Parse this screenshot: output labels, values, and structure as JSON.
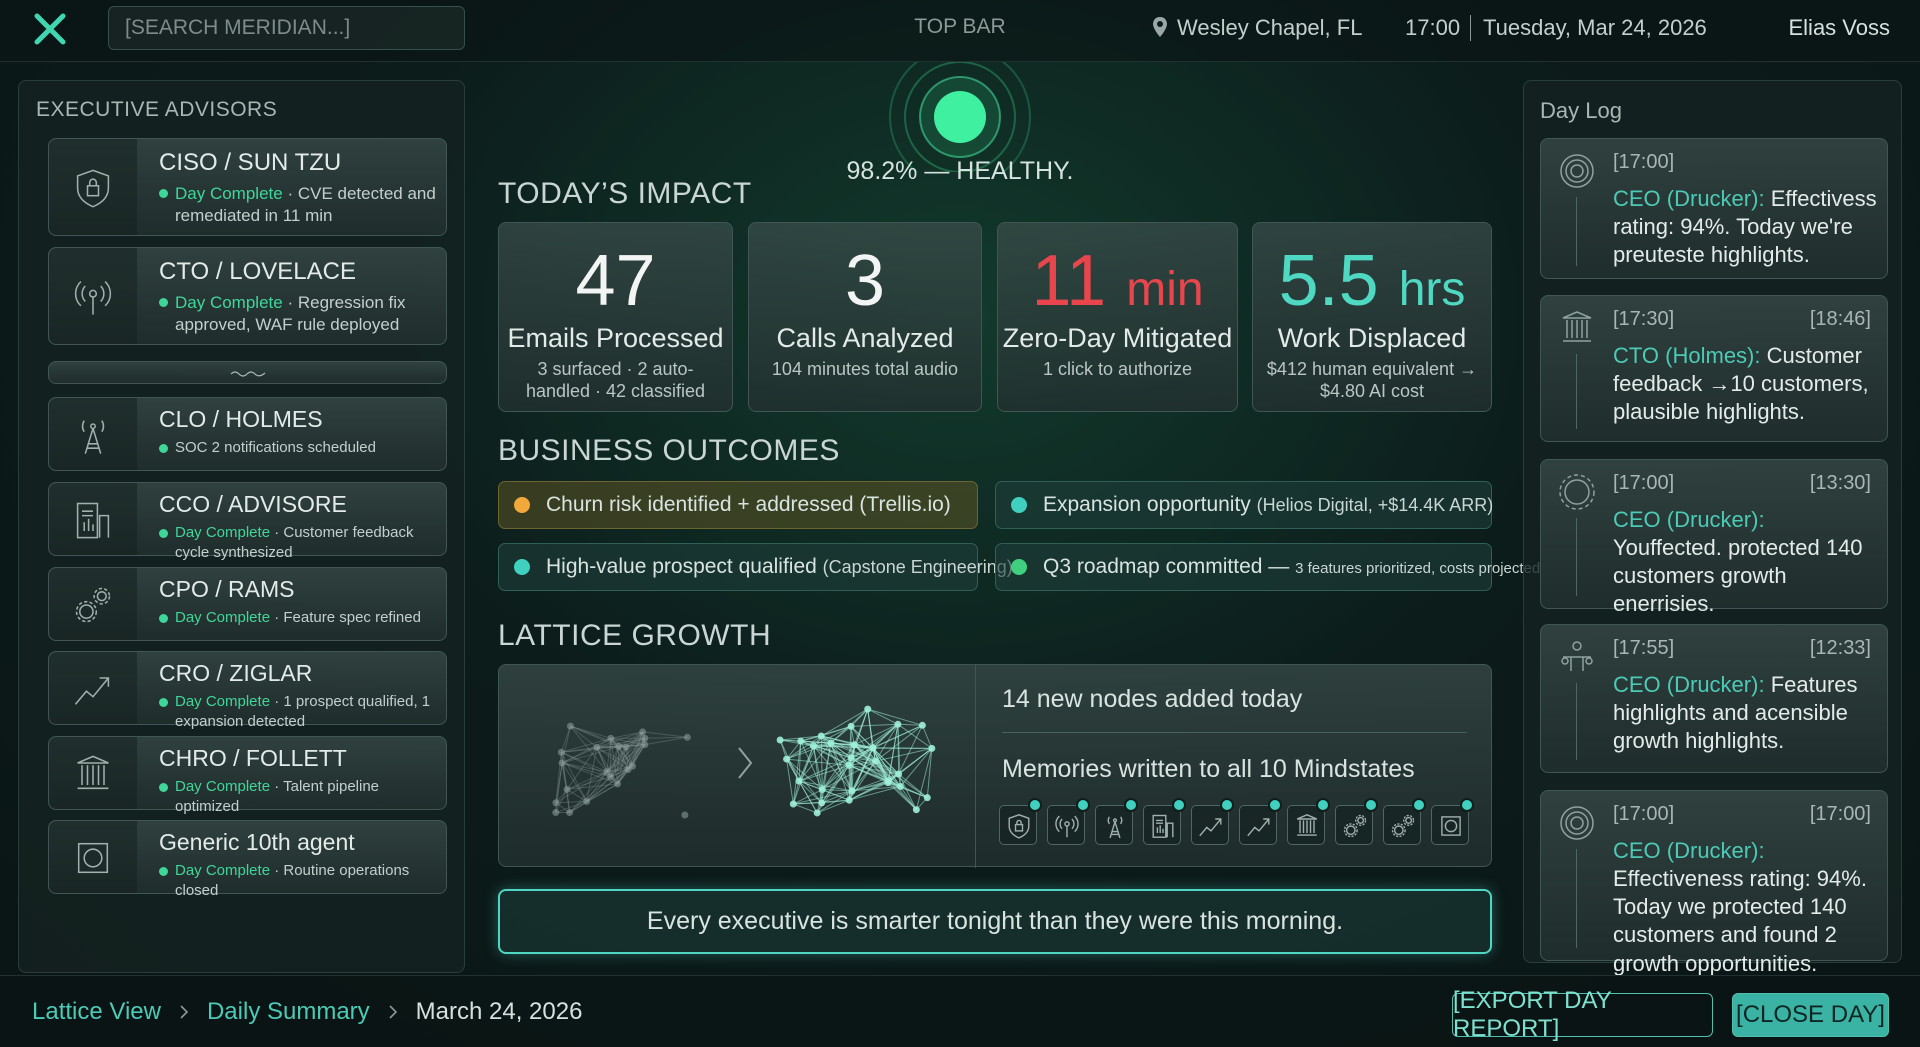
{
  "top_bar": {
    "search_placeholder": "[SEARCH MERIDIAN...]",
    "label": "TOP BAR",
    "location": "Wesley Chapel, FL",
    "time": "17:00",
    "date": "Tuesday, Mar 24, 2026",
    "user": "Elias Voss"
  },
  "advisors": {
    "title": "EXECUTIVE ADVISORS",
    "items": [
      {
        "name": "CISO / SUN TZU",
        "status": "Day Complete",
        "detail": "· CVE detected and remediated in 11 min"
      },
      {
        "name": "CTO / LOVELACE",
        "status": "Day Complete",
        "detail": "· Regression fix approved, WAF rule deployed"
      },
      {
        "name": "CLO / HOLMES",
        "detail": "SOC 2 notifications scheduled"
      },
      {
        "name": "CCO / ADVISORE",
        "status": "Day Complete",
        "detail": "· Customer feedback cycle synthesized"
      },
      {
        "name": "CPO / RAMS",
        "status": "Day Complete",
        "detail": "· Feature spec refined"
      },
      {
        "name": "CRO / ZIGLAR",
        "status": "Day Complete",
        "detail": "· 1 prospect qualified, 1 expansion detected"
      },
      {
        "name": "CHRO / FOLLETT",
        "status": "Day Complete",
        "detail": "· Talent pipeline optimized"
      },
      {
        "name": "Generic 10th agent",
        "status": "Day Complete",
        "detail": "· Routine operations closed"
      }
    ]
  },
  "health": {
    "label": "98.2% — HEALTHY."
  },
  "impact": {
    "title": "TODAY’S IMPACT",
    "cards": [
      {
        "value": "47",
        "label": "Emails Processed",
        "detail": "3 surfaced · 2 auto-handled · 42 classified"
      },
      {
        "value": "3",
        "label": "Calls Analyzed",
        "detail": "104 minutes total audio"
      },
      {
        "value": "11",
        "unit": "min",
        "color": "#e8464c",
        "label": "Zero-Day Mitigated",
        "detail": "1 click to authorize"
      },
      {
        "value": "5.5",
        "unit": "hrs",
        "color": "#4fd8c2",
        "label": "Work Displaced",
        "detail": "$412 human equivalent → $4.80 AI cost"
      }
    ]
  },
  "outcomes": {
    "title": "BUSINESS OUTCOMES",
    "items": [
      {
        "text": "Churn risk identified + addressed (Trellis.io)",
        "dot": "#f2a93b"
      },
      {
        "text": "Expansion opportunity",
        "note": "(Helios Digital, +$14.4K ARR)",
        "dot": "#3fd0c0"
      },
      {
        "text": "High-value prospect qualified",
        "note": "(Capstone Engineering)",
        "dot": "#3fd0c0"
      },
      {
        "text": "Q3 roadmap committed —",
        "note": "3 features prioritized, costs projected",
        "dot": "#3fcf7e"
      }
    ]
  },
  "lattice": {
    "title": "LATTICE GROWTH",
    "nodes_added": "14 new nodes added today",
    "memories": "Memories written to all 10 Mindstates"
  },
  "banner": "Every executive is smarter tonight than they were this morning.",
  "day_log": {
    "title": "Day Log",
    "entries": [
      {
        "time": "[17:00]",
        "speaker": "CEO (Drucker):",
        "text": "Effectivess rating: 94%. Today we're preuteste highlights."
      },
      {
        "time": "[17:30]",
        "end": "[18:46]",
        "speaker": "CTO (Holmes):",
        "text": "Customer feedback →10 customers, plausible highlights."
      },
      {
        "time": "[17:00]",
        "end": "[13:30]",
        "speaker": "CEO (Drucker):",
        "text": "Youffected. protected 140 customers growth enerrisies."
      },
      {
        "time": "[17:55]",
        "end": "[12:33]",
        "speaker": "CEO (Drucker):",
        "text": "Features highlights and acensible growth highlights."
      },
      {
        "time": "[17:00]",
        "end": "[17:00]",
        "speaker": "CEO (Drucker):",
        "text": "Effectiveness rating: 94%. Today we protected 140 customers and found 2 growth opportunities."
      }
    ]
  },
  "footer": {
    "breadcrumbs": [
      "Lattice View",
      "Daily Summary",
      "March 24, 2026"
    ],
    "export": "[EXPORT DAY REPORT]",
    "close": "[CLOSE DAY]"
  }
}
